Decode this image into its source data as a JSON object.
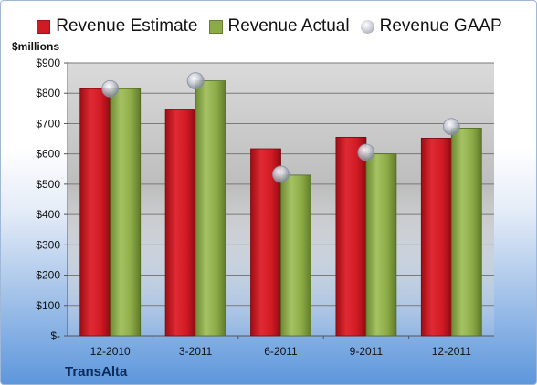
{
  "chart_data": {
    "type": "bar",
    "unit_label": "$millions",
    "company": "TransAlta",
    "categories": [
      "12-2010",
      "3-2011",
      "6-2011",
      "9-2011",
      "12-2011"
    ],
    "series": [
      {
        "name": "Revenue Estimate",
        "kind": "bar",
        "color": "#d01a24",
        "values": [
          815,
          745,
          617,
          655,
          652
        ]
      },
      {
        "name": "Revenue Actual",
        "kind": "bar",
        "color": "#8cab46",
        "values": [
          815,
          841,
          530,
          600,
          685
        ]
      },
      {
        "name": "Revenue GAAP",
        "kind": "point",
        "color": "#b8bcc6",
        "values": [
          815,
          841,
          533,
          605,
          690
        ]
      }
    ],
    "y_ticks": [
      0,
      100,
      200,
      300,
      400,
      500,
      600,
      700,
      800,
      900
    ],
    "y_tick_labels": [
      "$-",
      "$100",
      "$200",
      "$300",
      "$400",
      "$500",
      "$600",
      "$700",
      "$800",
      "$900"
    ],
    "ylim": [
      0,
      900
    ],
    "grid": true,
    "legend_position": "top-center"
  }
}
